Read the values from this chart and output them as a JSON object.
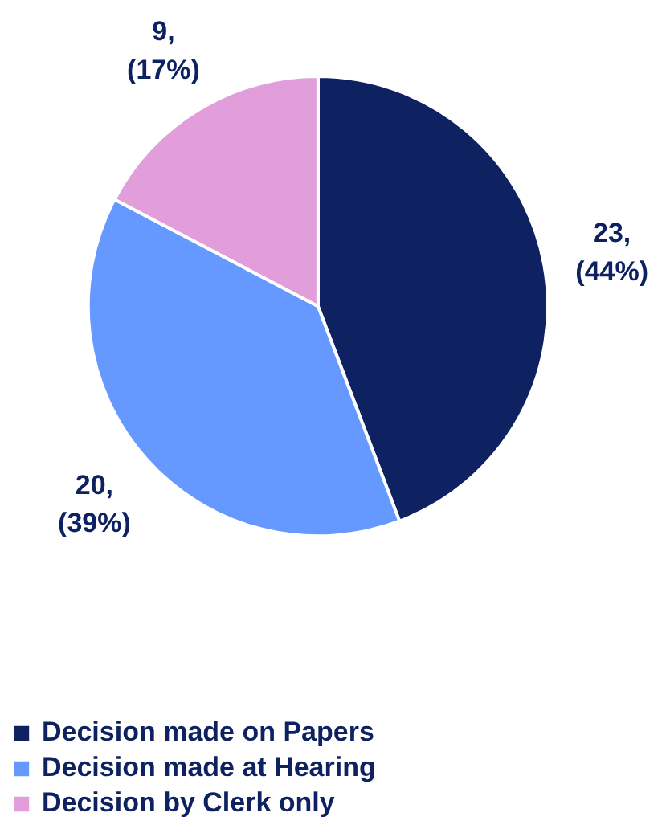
{
  "chart_data": {
    "type": "pie",
    "categories": [
      "Decision made on Papers",
      "Decision made at Hearing",
      "Decision by Clerk only"
    ],
    "values": [
      23,
      20,
      9
    ],
    "colors": [
      "#0e2160",
      "#6699ff",
      "#e29ddb"
    ],
    "value_labels": [
      "23,\n(44%)",
      "20,\n(39%)",
      "9,\n(17%)"
    ],
    "legend": "bottom"
  }
}
